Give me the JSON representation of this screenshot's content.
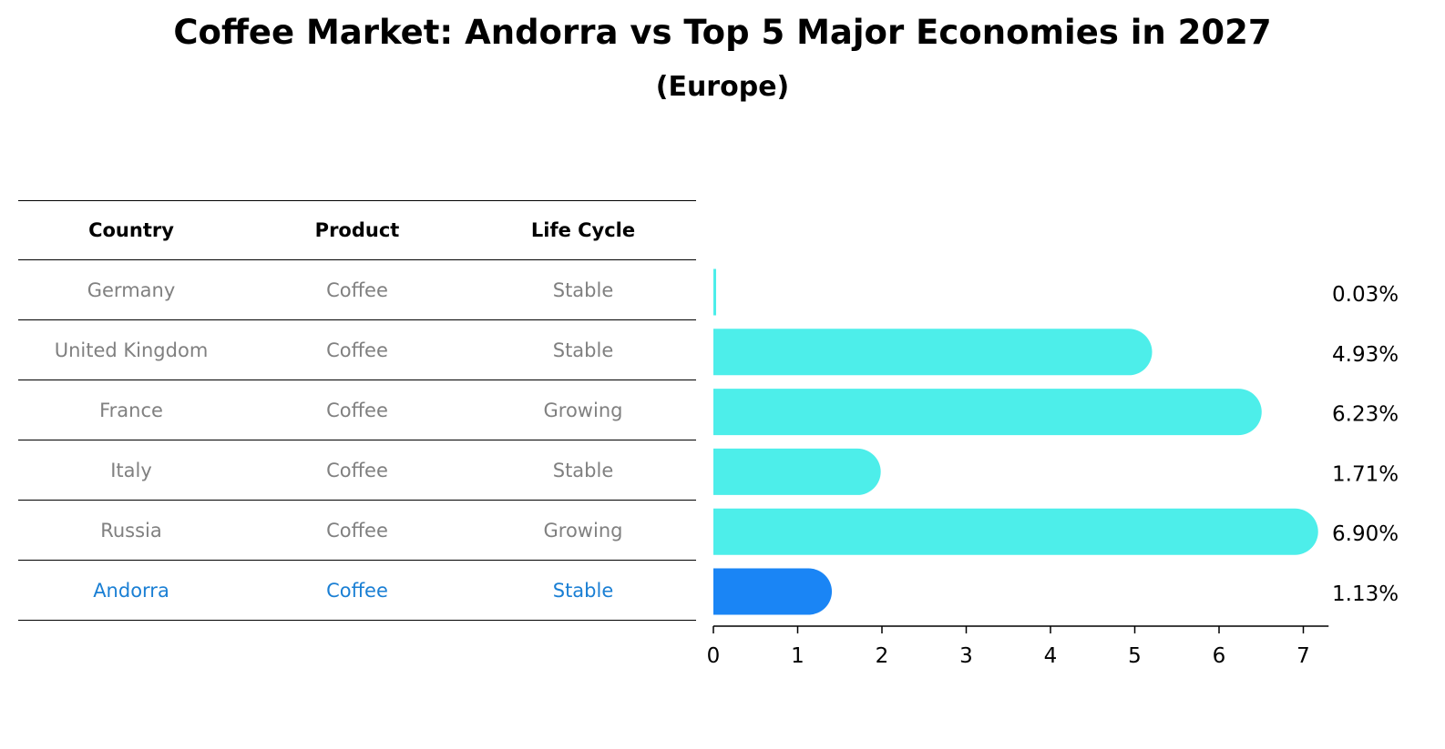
{
  "title": "Coffee Market: Andorra vs Top 5 Major Economies in 2027",
  "subtitle": "(Europe)",
  "table": {
    "headers": [
      "Country",
      "Product",
      "Life Cycle"
    ],
    "rows": [
      {
        "country": "Germany",
        "product": "Coffee",
        "life_cycle": "Stable"
      },
      {
        "country": "United Kingdom",
        "product": "Coffee",
        "life_cycle": "Stable"
      },
      {
        "country": "France",
        "product": "Coffee",
        "life_cycle": "Growing"
      },
      {
        "country": "Italy",
        "product": "Coffee",
        "life_cycle": "Stable"
      },
      {
        "country": "Russia",
        "product": "Coffee",
        "life_cycle": "Growing"
      },
      {
        "country": "Andorra",
        "product": "Coffee",
        "life_cycle": "Stable"
      }
    ]
  },
  "chart_data": {
    "type": "bar",
    "orientation": "horizontal",
    "categories": [
      "Germany",
      "United Kingdom",
      "France",
      "Italy",
      "Russia",
      "Andorra"
    ],
    "values": [
      0.03,
      4.93,
      6.23,
      1.71,
      6.9,
      1.13
    ],
    "value_labels": [
      "0.03%",
      "4.93%",
      "6.23%",
      "1.71%",
      "6.90%",
      "1.13%"
    ],
    "xlim": [
      0,
      7.3
    ],
    "xticks": [
      0,
      1,
      2,
      3,
      4,
      5,
      6,
      7
    ],
    "grid": false,
    "colors": {
      "default": "#4deeea",
      "highlight": "#1a85f5"
    },
    "highlight": "Andorra"
  }
}
